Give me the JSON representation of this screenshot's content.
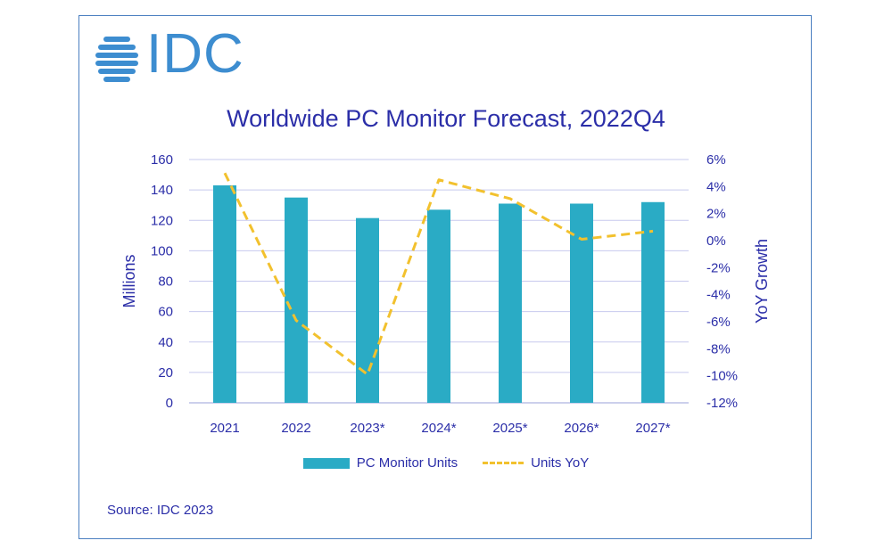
{
  "brand": {
    "name": "IDC",
    "color": "#3d8dd0"
  },
  "source": "Source: IDC 2023",
  "chart_data": {
    "type": "bar",
    "title": "Worldwide PC Monitor Forecast, 2022Q4",
    "categories": [
      "2021",
      "2022",
      "2023*",
      "2024*",
      "2025*",
      "2026*",
      "2027*"
    ],
    "ylabel": "Millions",
    "y2label": "YoY Growth",
    "ylim": [
      0,
      160
    ],
    "yticks": [
      0,
      20,
      40,
      60,
      80,
      100,
      120,
      140,
      160
    ],
    "y2lim": [
      -12,
      6
    ],
    "y2ticks": [
      "-12%",
      "-10%",
      "-8%",
      "-6%",
      "-4%",
      "-2%",
      "0%",
      "2%",
      "4%",
      "6%"
    ],
    "y2tick_values": [
      -12,
      -10,
      -8,
      -6,
      -4,
      -2,
      0,
      2,
      4,
      6
    ],
    "grid": true,
    "legend_position": "bottom",
    "series": [
      {
        "name": "PC Monitor Units",
        "type": "bar",
        "axis": "left",
        "color": "#2aabc5",
        "values": [
          143,
          135,
          121.5,
          127,
          131,
          131,
          132
        ]
      },
      {
        "name": "Units YoY",
        "type": "line",
        "style": "dashed",
        "axis": "right",
        "color": "#f2c12e",
        "values": [
          5.0,
          -5.9,
          -9.9,
          4.5,
          3.1,
          0.1,
          0.7
        ]
      }
    ]
  }
}
